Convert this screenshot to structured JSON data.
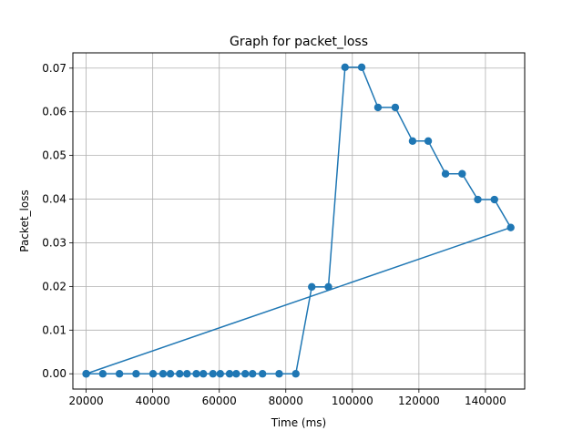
{
  "chart_data": {
    "type": "line",
    "title": "Graph for packet_loss",
    "xlabel": "Time (ms)",
    "ylabel": "Packet_loss",
    "xlim": [
      16000,
      151800
    ],
    "ylim": [
      -0.0035,
      0.0735
    ],
    "xticks": [
      20000,
      40000,
      60000,
      80000,
      100000,
      120000,
      140000
    ],
    "xtick_labels": [
      "20000",
      "40000",
      "60000",
      "80000",
      "100000",
      "120000",
      "140000"
    ],
    "yticks": [
      0.0,
      0.01,
      0.02,
      0.03,
      0.04,
      0.05,
      0.06,
      0.07
    ],
    "ytick_labels": [
      "0.00",
      "0.01",
      "0.02",
      "0.03",
      "0.04",
      "0.05",
      "0.06",
      "0.07"
    ],
    "grid": true,
    "series": [
      {
        "color": "#1f77b4",
        "marker": "circle",
        "points": [
          [
            20000,
            0.0
          ],
          [
            147600,
            0.0335
          ],
          [
            142700,
            0.0399
          ],
          [
            137700,
            0.0399
          ],
          [
            133000,
            0.0458
          ],
          [
            128000,
            0.0458
          ],
          [
            122800,
            0.0533
          ],
          [
            118100,
            0.0533
          ],
          [
            112900,
            0.061
          ],
          [
            107700,
            0.061
          ],
          [
            102800,
            0.0702
          ],
          [
            97800,
            0.0702
          ],
          [
            92800,
            0.0199
          ],
          [
            87800,
            0.0199
          ],
          [
            83000,
            0.0
          ],
          [
            78000,
            0.0
          ],
          [
            73000,
            0.0
          ],
          [
            70000,
            0.0
          ],
          [
            67800,
            0.0
          ],
          [
            65100,
            0.0
          ],
          [
            63100,
            0.0
          ],
          [
            60300,
            0.0
          ],
          [
            58100,
            0.0
          ],
          [
            55200,
            0.0
          ],
          [
            53100,
            0.0
          ],
          [
            50300,
            0.0
          ],
          [
            48100,
            0.0
          ],
          [
            45300,
            0.0
          ],
          [
            43100,
            0.0
          ],
          [
            40100,
            0.0
          ],
          [
            35000,
            0.0
          ],
          [
            30000,
            0.0
          ],
          [
            25000,
            0.0
          ],
          [
            20000,
            0.0
          ]
        ]
      }
    ]
  }
}
